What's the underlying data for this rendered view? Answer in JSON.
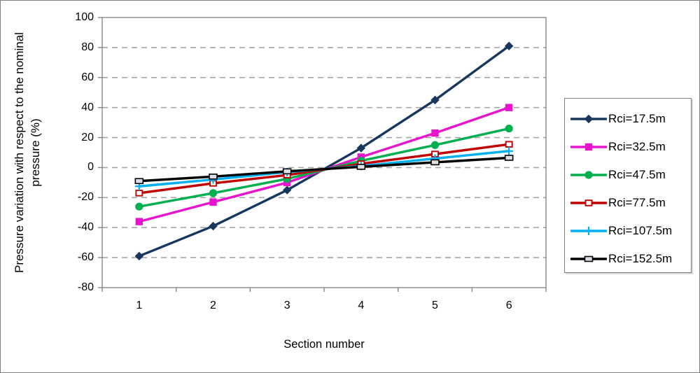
{
  "chart_data": {
    "type": "line",
    "title": "",
    "xlabel": "Section number",
    "ylabel": "Pressure variation with respect to the nominal pressure (%)",
    "ylabel_line1": "Pressure variation with respect to the nominal",
    "ylabel_line2": "pressure  (%)",
    "x": [
      1,
      2,
      3,
      4,
      5,
      6
    ],
    "xticklabels": [
      "1",
      "2",
      "3",
      "4",
      "5",
      "6"
    ],
    "yticks": [
      "100",
      "80",
      "60",
      "40",
      "20",
      "0",
      "-20",
      "-40",
      "-60",
      "-80"
    ],
    "ylim": [
      -80,
      100
    ],
    "grid": "horizontal-dashed",
    "gridline_values": [
      80,
      60,
      40,
      20,
      0,
      -20,
      -40,
      -60
    ],
    "legend_position": "right",
    "axis_color": "#808080",
    "gridline_color": "#A6A6A6",
    "series": [
      {
        "name": "Rci=17.5m",
        "color": "#17375E",
        "marker": "diamond",
        "values": [
          -59,
          -39,
          -15,
          13,
          45,
          81
        ]
      },
      {
        "name": "Rci=32.5m",
        "color": "#E913CE",
        "marker": "square",
        "values": [
          -36,
          -23,
          -10,
          7,
          23,
          40
        ]
      },
      {
        "name": "Rci=47.5m",
        "color": "#00B050",
        "marker": "circle",
        "values": [
          -26,
          -17,
          -7.5,
          4.5,
          15,
          26
        ]
      },
      {
        "name": "Rci=77.5m",
        "color": "#C00000",
        "marker": "square-open",
        "values": [
          -17,
          -10.5,
          -5,
          2.5,
          9,
          15.5
        ]
      },
      {
        "name": "Rci=107.5m",
        "color": "#00B0F0",
        "marker": "plus",
        "values": [
          -12.5,
          -8,
          -3,
          1,
          6,
          11
        ]
      },
      {
        "name": "Rci=152.5m",
        "color": "#000000",
        "marker": "dash-open",
        "values": [
          -9,
          -6,
          -2.5,
          0.5,
          3.5,
          6.5
        ]
      }
    ]
  }
}
